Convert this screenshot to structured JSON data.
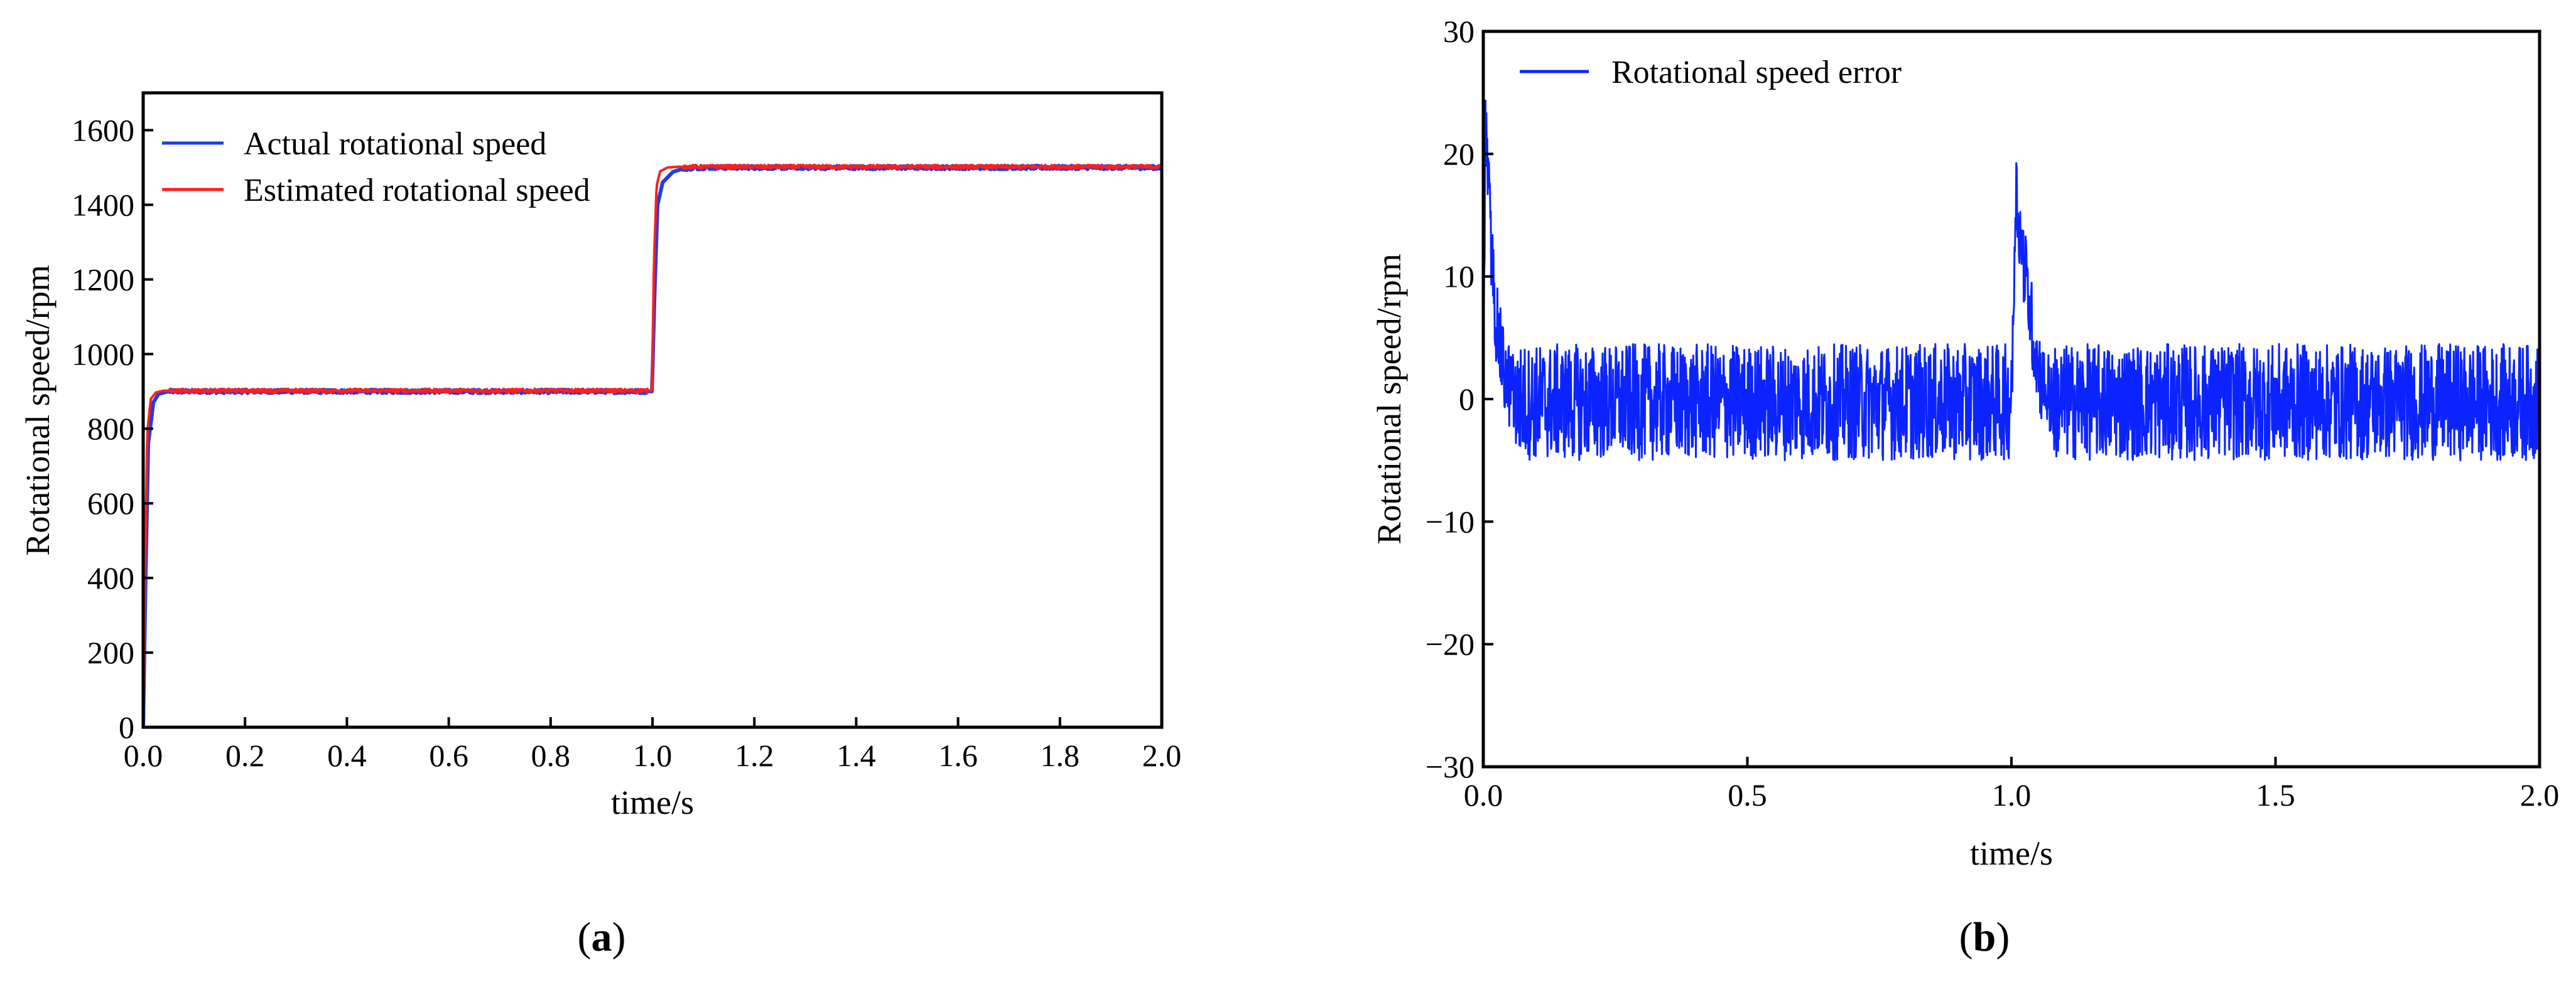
{
  "colors": {
    "actual": "#1f3fe0",
    "estimated": "#ff1f1f",
    "error": "#0b24ff",
    "axis": "#000000"
  },
  "panels": [
    {
      "id": "a",
      "label": "a",
      "chart_data": {
        "type": "line",
        "title": "",
        "xlabel": "time/s",
        "ylabel": "Rotational speed/rpm",
        "xlim": [
          0,
          2.0
        ],
        "ylim": [
          0,
          1700
        ],
        "xticks": [
          0.0,
          0.2,
          0.4,
          0.6,
          0.8,
          1.0,
          1.2,
          1.4,
          1.6,
          1.8,
          2.0
        ],
        "xtick_labels": [
          "0.0",
          "0.2",
          "0.4",
          "0.6",
          "0.8",
          "1.0",
          "1.2",
          "1.4",
          "1.6",
          "1.8",
          "2.0"
        ],
        "yticks": [
          0,
          200,
          400,
          600,
          800,
          1000,
          1200,
          1400,
          1600
        ],
        "ytick_labels": [
          "0",
          "200",
          "400",
          "600",
          "800",
          "1000",
          "1200",
          "1400",
          "1600"
        ],
        "grid": false,
        "legend": "top-left",
        "series": [
          {
            "name": "Actual rotational speed",
            "color": "#1f3fe0",
            "x": [
              0,
              0.005,
              0.01,
              0.02,
              0.03,
              0.05,
              0.1,
              0.3,
              0.5,
              0.7,
              0.9,
              0.999,
              1.005,
              1.01,
              1.02,
              1.04,
              1.06,
              1.1,
              1.3,
              1.5,
              1.7,
              1.9,
              2.0
            ],
            "y": [
              0,
              420,
              760,
              870,
              893,
              900,
              900,
              900,
              900,
              900,
              900,
              900,
              1200,
              1400,
              1460,
              1488,
              1497,
              1500,
              1500,
              1500,
              1500,
              1500,
              1500
            ]
          },
          {
            "name": "Estimated rotational speed",
            "color": "#ff1f1f",
            "x": [
              0,
              0.004,
              0.008,
              0.015,
              0.025,
              0.04,
              0.1,
              0.3,
              0.5,
              0.7,
              0.9,
              0.999,
              1.003,
              1.008,
              1.015,
              1.03,
              1.05,
              1.1,
              1.3,
              1.5,
              1.7,
              1.9,
              2.0
            ],
            "y": [
              0,
              450,
              790,
              880,
              897,
              902,
              902,
              902,
              902,
              902,
              902,
              902,
              1250,
              1450,
              1490,
              1500,
              1502,
              1502,
              1502,
              1502,
              1502,
              1502,
              1502
            ]
          }
        ],
        "noise_amplitude": 5
      }
    },
    {
      "id": "b",
      "label": "b",
      "chart_data": {
        "type": "line",
        "title": "",
        "xlabel": "time/s",
        "ylabel": "Rotational speed/rpm",
        "xlim": [
          0,
          2.0
        ],
        "ylim": [
          -30,
          30
        ],
        "xticks": [
          0.0,
          0.5,
          1.0,
          1.5,
          2.0
        ],
        "xtick_labels": [
          "0.0",
          "0.5",
          "1.0",
          "1.5",
          "2.0"
        ],
        "yticks": [
          -30,
          -20,
          -10,
          0,
          10,
          20,
          30
        ],
        "ytick_labels": [
          "−30",
          "−20",
          "−10",
          "0",
          "10",
          "20",
          "30"
        ],
        "grid": false,
        "legend": "top-left",
        "series": [
          {
            "name": "Rotational speed error",
            "color": "#0b24ff",
            "x": [
              0,
              0.004,
              0.008,
              0.015,
              0.025,
              0.04,
              0.06,
              0.08,
              1.0,
              1.003,
              1.008,
              1.015,
              1.03,
              1.045,
              1.06,
              1.08,
              2.0
            ],
            "y": [
              0,
              22.5,
              19,
              12,
              6,
              2,
              0,
              0,
              0,
              5,
              17.5,
              14,
              9,
              4,
              1,
              0,
              0
            ]
          }
        ],
        "noise_band": [
          -5,
          5
        ]
      }
    }
  ]
}
